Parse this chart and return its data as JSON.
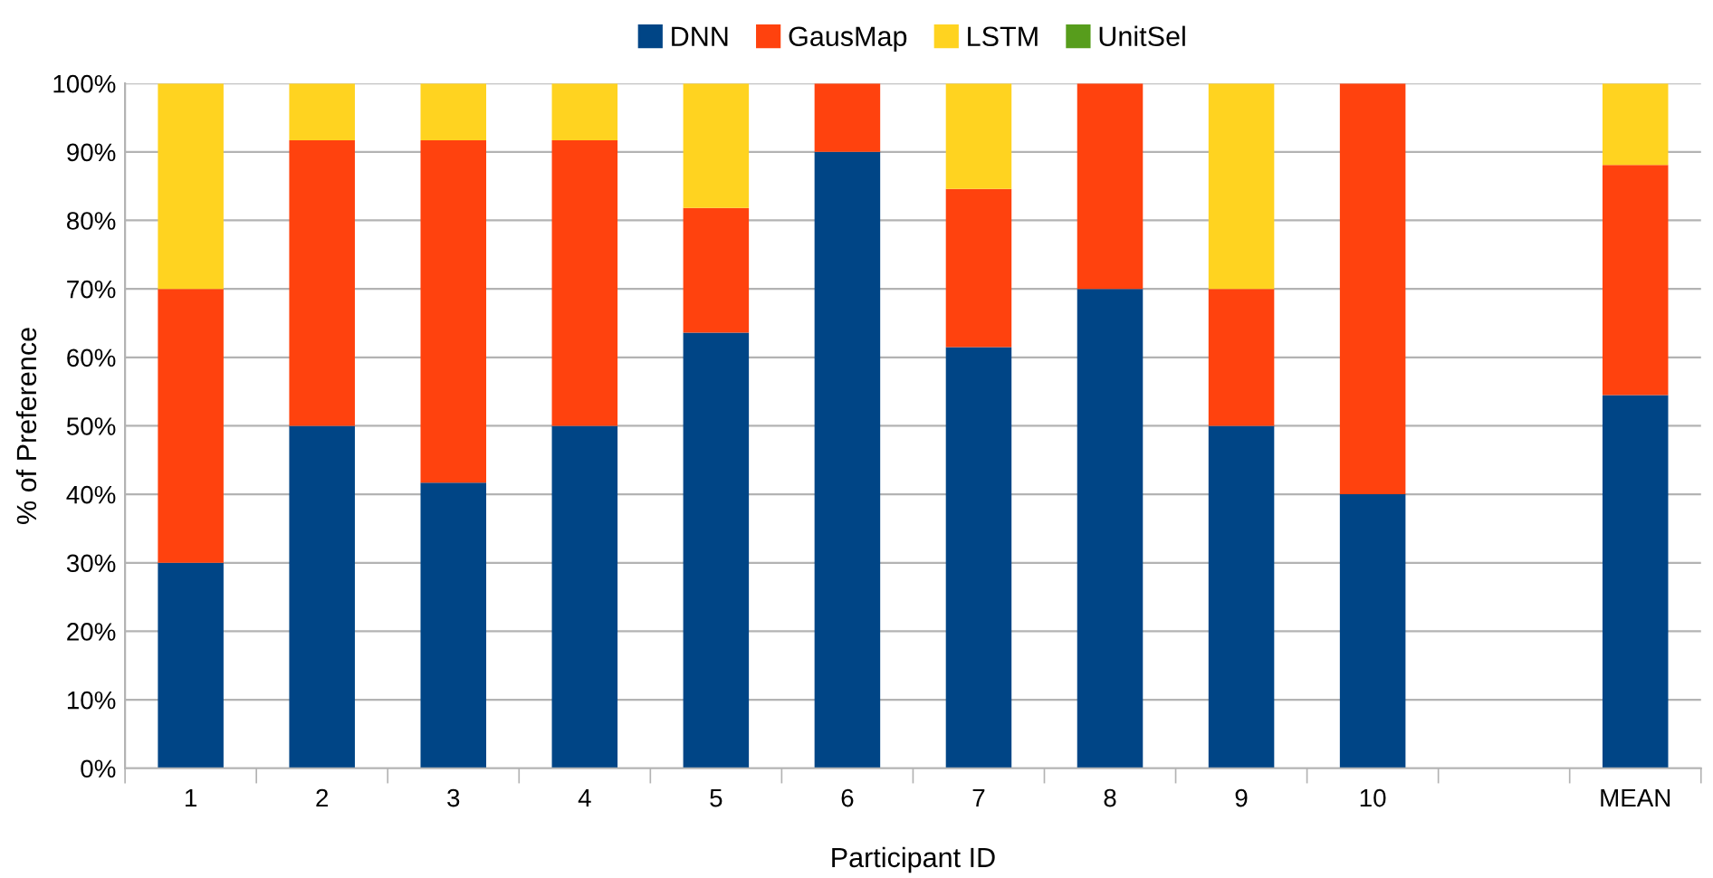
{
  "chart_data": {
    "type": "bar",
    "stacked": true,
    "xlabel": "Participant ID",
    "ylabel": "% of Preference",
    "categories": [
      "1",
      "2",
      "3",
      "4",
      "5",
      "6",
      "7",
      "8",
      "9",
      "10",
      null,
      "MEAN"
    ],
    "series": [
      {
        "name": "DNN",
        "color": "#004586",
        "values": [
          30,
          50,
          41.7,
          50,
          63.6,
          90,
          61.5,
          70,
          50,
          40,
          null,
          54.5
        ]
      },
      {
        "name": "GausMap",
        "color": "#ff420e",
        "values": [
          40,
          41.7,
          50,
          41.7,
          18.2,
          10,
          23.1,
          30,
          20,
          60,
          null,
          33.6
        ]
      },
      {
        "name": "LSTM",
        "color": "#ffd320",
        "values": [
          30,
          8.3,
          8.3,
          8.3,
          18.2,
          0,
          15.4,
          0,
          30,
          0,
          null,
          11.9
        ]
      },
      {
        "name": "UnitSel",
        "color": "#579d1c",
        "values": [
          0,
          0,
          0,
          0,
          0,
          0,
          0,
          0,
          0,
          0,
          null,
          0
        ]
      }
    ],
    "ylim": [
      0,
      100
    ],
    "yticks": [
      {
        "value": 0,
        "label": "0%"
      },
      {
        "value": 10,
        "label": "10%"
      },
      {
        "value": 20,
        "label": "20%"
      },
      {
        "value": 30,
        "label": "30%"
      },
      {
        "value": 40,
        "label": "40%"
      },
      {
        "value": 50,
        "label": "50%"
      },
      {
        "value": 60,
        "label": "60%"
      },
      {
        "value": 70,
        "label": "70%"
      },
      {
        "value": 80,
        "label": "80%"
      },
      {
        "value": 90,
        "label": "90%"
      },
      {
        "value": 100,
        "label": "100%"
      }
    ],
    "grid": "y",
    "legend": "top"
  }
}
